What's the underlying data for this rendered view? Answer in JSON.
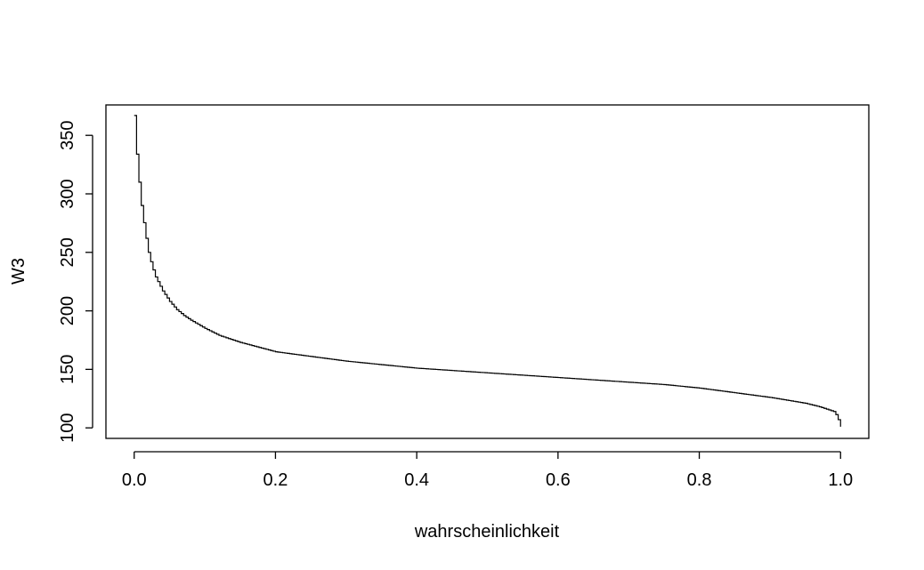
{
  "chart_data": {
    "type": "line",
    "line_style": "step",
    "title": "",
    "xlabel": "wahrscheinlichkeit",
    "ylabel": "W3",
    "xlim": [
      -0.04,
      1.04
    ],
    "ylim": [
      91,
      376
    ],
    "x_ticks": [
      0.0,
      0.2,
      0.4,
      0.6,
      0.8,
      1.0
    ],
    "x_tick_labels": [
      "0.0",
      "0.2",
      "0.4",
      "0.6",
      "0.8",
      "1.0"
    ],
    "y_ticks": [
      100,
      150,
      200,
      250,
      300,
      350
    ],
    "y_tick_labels": [
      "100",
      "150",
      "200",
      "250",
      "300",
      "350"
    ],
    "grid": false,
    "legend": "none",
    "series": [
      {
        "color": "#000000",
        "x": [
          0.0,
          0.002,
          0.005,
          0.01,
          0.015,
          0.02,
          0.025,
          0.03,
          0.04,
          0.05,
          0.06,
          0.07,
          0.08,
          0.1,
          0.12,
          0.15,
          0.2,
          0.25,
          0.3,
          0.35,
          0.4,
          0.45,
          0.5,
          0.55,
          0.6,
          0.65,
          0.7,
          0.75,
          0.8,
          0.85,
          0.9,
          0.95,
          0.97,
          0.98,
          0.99,
          0.995,
          1.0
        ],
        "y": [
          367,
          345,
          320,
          290,
          268,
          250,
          238,
          229,
          217,
          208,
          201,
          196,
          192,
          185,
          179,
          173,
          165,
          161,
          157,
          154,
          151,
          149,
          147,
          145,
          143,
          141,
          139,
          137,
          134,
          130,
          126,
          121,
          118,
          116,
          114,
          110,
          101
        ]
      }
    ]
  }
}
